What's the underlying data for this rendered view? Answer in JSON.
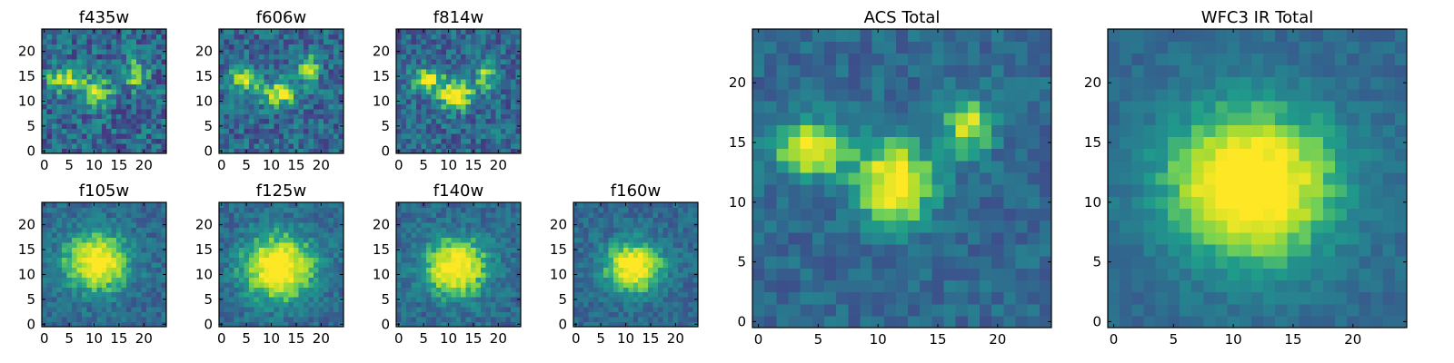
{
  "chart_data": [
    {
      "type": "heatmap",
      "title": "f435w",
      "xlim": [
        0,
        25
      ],
      "ylim": [
        0,
        25
      ],
      "xticks": [
        "0",
        "5",
        "10",
        "15",
        "20"
      ],
      "yticks": [
        "0",
        "5",
        "10",
        "15",
        "20"
      ],
      "grid": false,
      "colormap": "viridis",
      "noise": 0.45,
      "blobs": [
        {
          "x": 5,
          "y": 15,
          "sx": 2.5,
          "sy": 1.6,
          "a": 0.55
        },
        {
          "x": 11,
          "y": 12,
          "sx": 2.0,
          "sy": 1.8,
          "a": 0.5
        },
        {
          "x": 19,
          "y": 16,
          "sx": 1.5,
          "sy": 2.0,
          "a": 0.45
        }
      ]
    },
    {
      "type": "heatmap",
      "title": "f606w",
      "xlim": [
        0,
        25
      ],
      "ylim": [
        0,
        25
      ],
      "xticks": [
        "0",
        "5",
        "10",
        "15",
        "20"
      ],
      "yticks": [
        "0",
        "5",
        "10",
        "15",
        "20"
      ],
      "grid": false,
      "colormap": "viridis",
      "noise": 0.4,
      "blobs": [
        {
          "x": 5,
          "y": 15,
          "sx": 2.0,
          "sy": 1.5,
          "a": 0.6
        },
        {
          "x": 12,
          "y": 12,
          "sx": 2.2,
          "sy": 1.8,
          "a": 0.6
        },
        {
          "x": 18,
          "y": 17,
          "sx": 1.3,
          "sy": 1.8,
          "a": 0.5
        }
      ]
    },
    {
      "type": "heatmap",
      "title": "f814w",
      "xlim": [
        0,
        25
      ],
      "ylim": [
        0,
        25
      ],
      "xticks": [
        "0",
        "5",
        "10",
        "15",
        "20"
      ],
      "yticks": [
        "0",
        "5",
        "10",
        "15",
        "20"
      ],
      "grid": false,
      "colormap": "viridis",
      "noise": 0.38,
      "blobs": [
        {
          "x": 6,
          "y": 15,
          "sx": 2.0,
          "sy": 1.6,
          "a": 0.55
        },
        {
          "x": 12,
          "y": 12,
          "sx": 2.5,
          "sy": 2.0,
          "a": 0.7
        },
        {
          "x": 18,
          "y": 16,
          "sx": 1.3,
          "sy": 1.8,
          "a": 0.45
        }
      ]
    },
    {
      "type": "heatmap",
      "title": "f105w",
      "xlim": [
        0,
        25
      ],
      "ylim": [
        0,
        25
      ],
      "xticks": [
        "0",
        "5",
        "10",
        "15",
        "20"
      ],
      "yticks": [
        "0",
        "5",
        "10",
        "15",
        "20"
      ],
      "grid": false,
      "colormap": "viridis",
      "noise": 0.25,
      "blobs": [
        {
          "x": 11,
          "y": 13,
          "sx": 4.5,
          "sy": 4.0,
          "a": 0.7
        }
      ]
    },
    {
      "type": "heatmap",
      "title": "f125w",
      "xlim": [
        0,
        25
      ],
      "ylim": [
        0,
        25
      ],
      "xticks": [
        "0",
        "5",
        "10",
        "15",
        "20"
      ],
      "yticks": [
        "0",
        "5",
        "10",
        "15",
        "20"
      ],
      "grid": false,
      "colormap": "viridis",
      "noise": 0.25,
      "blobs": [
        {
          "x": 12,
          "y": 12,
          "sx": 5.0,
          "sy": 4.5,
          "a": 0.75
        }
      ]
    },
    {
      "type": "heatmap",
      "title": "f140w",
      "xlim": [
        0,
        25
      ],
      "ylim": [
        0,
        25
      ],
      "xticks": [
        "0",
        "5",
        "10",
        "15",
        "20"
      ],
      "yticks": [
        "0",
        "5",
        "10",
        "15",
        "20"
      ],
      "grid": false,
      "colormap": "viridis",
      "noise": 0.25,
      "blobs": [
        {
          "x": 12,
          "y": 12,
          "sx": 4.5,
          "sy": 4.0,
          "a": 0.72
        }
      ]
    },
    {
      "type": "heatmap",
      "title": "f160w",
      "xlim": [
        0,
        25
      ],
      "ylim": [
        0,
        25
      ],
      "xticks": [
        "0",
        "5",
        "10",
        "15",
        "20"
      ],
      "yticks": [
        "0",
        "5",
        "10",
        "15",
        "20"
      ],
      "grid": false,
      "colormap": "viridis",
      "noise": 0.22,
      "blobs": [
        {
          "x": 12,
          "y": 12,
          "sx": 4.0,
          "sy": 3.5,
          "a": 0.72
        }
      ]
    },
    {
      "type": "heatmap",
      "title": "ACS Total",
      "xlim": [
        0,
        25
      ],
      "ylim": [
        0,
        25
      ],
      "xticks": [
        "0",
        "5",
        "10",
        "15",
        "20"
      ],
      "yticks": [
        "0",
        "5",
        "10",
        "15",
        "20"
      ],
      "grid": false,
      "colormap": "viridis",
      "noise": 0.22,
      "blobs": [
        {
          "x": 5,
          "y": 15,
          "sx": 2.2,
          "sy": 1.6,
          "a": 0.62
        },
        {
          "x": 12,
          "y": 12,
          "sx": 2.2,
          "sy": 2.4,
          "a": 0.72
        },
        {
          "x": 18,
          "y": 17,
          "sx": 1.4,
          "sy": 1.8,
          "a": 0.52
        }
      ]
    },
    {
      "type": "heatmap",
      "title": "WFC3 IR Total",
      "xlim": [
        0,
        25
      ],
      "ylim": [
        0,
        25
      ],
      "xticks": [
        "0",
        "5",
        "10",
        "15",
        "20"
      ],
      "yticks": [
        "0",
        "5",
        "10",
        "15",
        "20"
      ],
      "grid": false,
      "colormap": "viridis",
      "noise": 0.14,
      "blobs": [
        {
          "x": 12,
          "y": 12,
          "sx": 5.0,
          "sy": 4.5,
          "a": 0.78
        }
      ]
    }
  ]
}
